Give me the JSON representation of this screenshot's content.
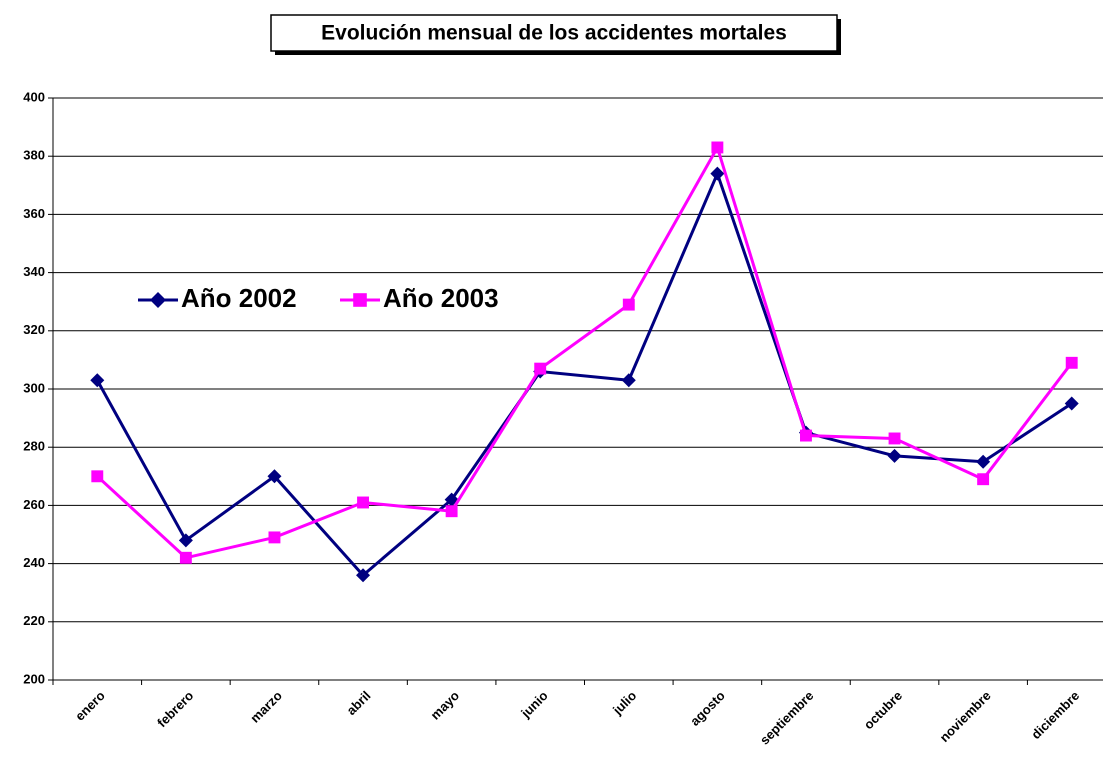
{
  "chart_data": {
    "type": "line",
    "title": "Evolución mensual de los accidentes mortales",
    "categories": [
      "enero",
      "febrero",
      "marzo",
      "abril",
      "mayo",
      "junio",
      "julio",
      "agosto",
      "septiembre",
      "octubre",
      "noviembre",
      "diciembre"
    ],
    "series": [
      {
        "name": "Año 2002",
        "color": "#000080",
        "marker": "diamond",
        "values": [
          303,
          248,
          270,
          236,
          262,
          306,
          303,
          374,
          285,
          277,
          275,
          295
        ]
      },
      {
        "name": "Año 2003",
        "color": "#ff00ff",
        "marker": "square",
        "values": [
          270,
          242,
          249,
          261,
          258,
          307,
          329,
          383,
          284,
          283,
          269,
          309
        ]
      }
    ],
    "ylim": [
      200,
      400
    ],
    "yticks": [
      200,
      220,
      240,
      260,
      280,
      300,
      320,
      340,
      360,
      380,
      400
    ],
    "grid": true
  }
}
